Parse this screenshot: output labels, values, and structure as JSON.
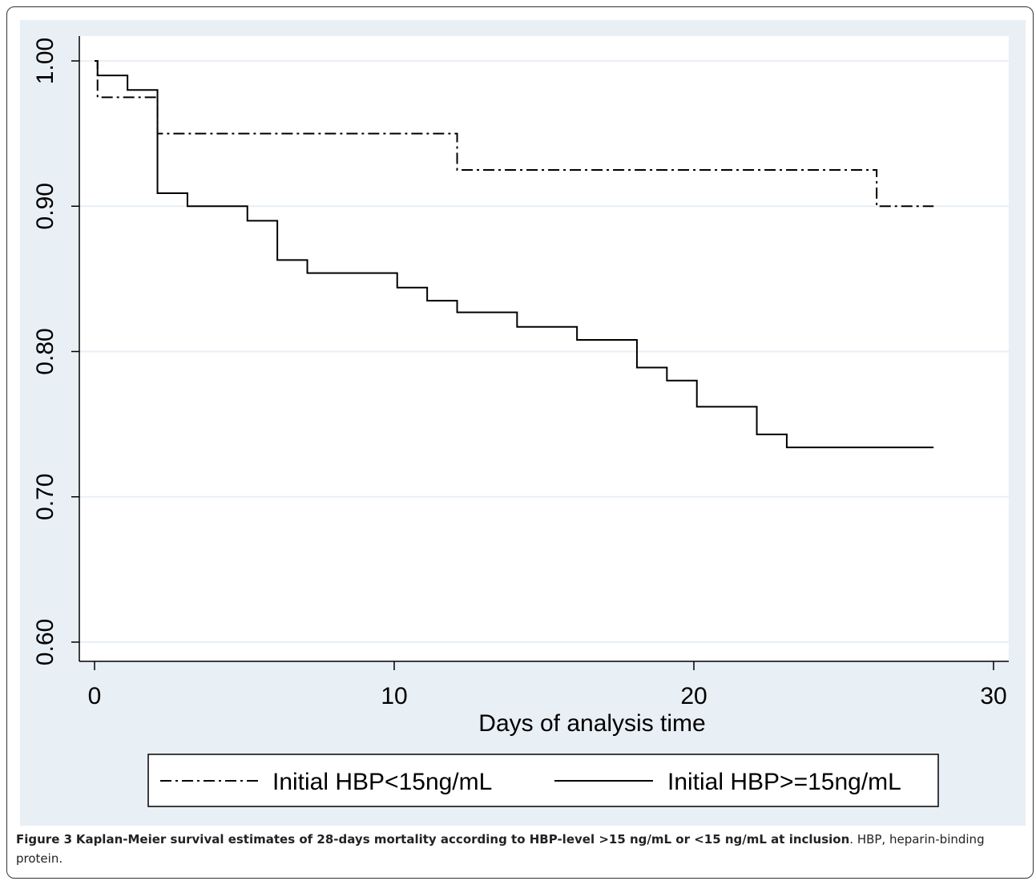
{
  "chart_data": {
    "type": "line",
    "step": true,
    "xlabel": "Days of analysis time",
    "ylabel": "",
    "xlim": [
      0,
      30
    ],
    "ylim": [
      0.6,
      1.0
    ],
    "xticks": [
      "0",
      "10",
      "20",
      "30"
    ],
    "yticks": [
      "0.60",
      "0.70",
      "0.80",
      "0.90",
      "1.00"
    ],
    "grid": true,
    "legend_position": "bottom",
    "series": [
      {
        "name": "Initial HBP<15ng/mL",
        "style": "dash-dot",
        "x": [
          0,
          0.1,
          2.1,
          12.1,
          26.1,
          28
        ],
        "y": [
          1.0,
          0.975,
          0.95,
          0.925,
          0.9,
          0.9
        ]
      },
      {
        "name": "Initial HBP>=15ng/mL",
        "style": "solid",
        "x": [
          0,
          0.1,
          1.1,
          2.1,
          3.1,
          5.1,
          6.1,
          7.1,
          10.1,
          11.1,
          12.1,
          14.1,
          16.1,
          18.1,
          19.1,
          20.1,
          22.1,
          23.1,
          28
        ],
        "y": [
          1.0,
          0.99,
          0.98,
          0.909,
          0.9,
          0.89,
          0.863,
          0.854,
          0.844,
          0.835,
          0.827,
          0.817,
          0.808,
          0.789,
          0.78,
          0.762,
          0.743,
          0.734,
          0.734
        ]
      }
    ]
  },
  "caption": {
    "label": "Figure 3",
    "title": "Kaplan-Meier survival estimates of 28-days mortality according to HBP-level >15 ng/mL or <15 ng/mL at inclusion",
    "rest": ". HBP, heparin-binding protein."
  }
}
